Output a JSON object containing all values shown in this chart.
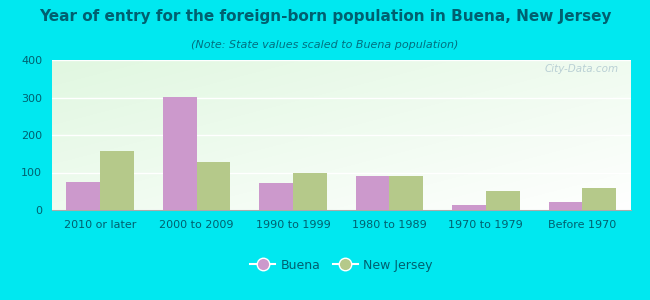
{
  "title": "Year of entry for the foreign-born population in Buena, New Jersey",
  "subtitle": "(Note: State values scaled to Buena population)",
  "categories": [
    "2010 or later",
    "2000 to 2009",
    "1990 to 1999",
    "1980 to 1989",
    "1970 to 1979",
    "Before 1970"
  ],
  "buena_values": [
    75,
    302,
    73,
    92,
    13,
    22
  ],
  "nj_values": [
    157,
    127,
    98,
    92,
    51,
    60
  ],
  "buena_color": "#cc99cc",
  "nj_color": "#b5c98a",
  "background_outer": "#00e8f0",
  "ylim": [
    0,
    400
  ],
  "yticks": [
    0,
    100,
    200,
    300,
    400
  ],
  "bar_width": 0.35,
  "title_fontsize": 11,
  "subtitle_fontsize": 8,
  "tick_fontsize": 8,
  "legend_labels": [
    "Buena",
    "New Jersey"
  ],
  "title_color": "#006070",
  "subtitle_color": "#007080",
  "tick_color": "#006070",
  "watermark_text": "City-Data.com",
  "watermark_color": "#b0c8d0"
}
